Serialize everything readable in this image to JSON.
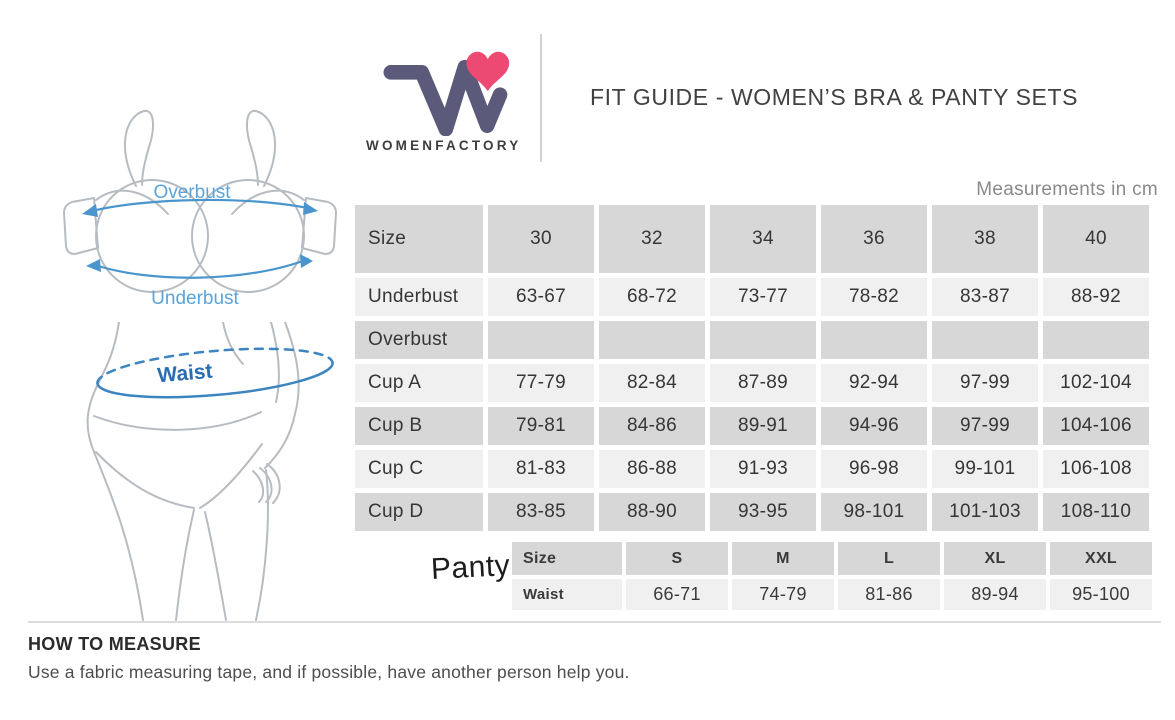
{
  "brand": {
    "wordmark": "WOMENFACTORY",
    "logo_color": "#5b5a7b",
    "heart_color": "#ec4a72"
  },
  "header": {
    "title": "FIT GUIDE - WOMEN’S BRA & PANTY SETS",
    "units_note": "Measurements in cm"
  },
  "diagram_labels": {
    "overbust": "Overbust",
    "underbust": "Underbust",
    "waist": "Waist"
  },
  "bra_table": {
    "columns": [
      "Size",
      "30",
      "32",
      "34",
      "36",
      "38",
      "40"
    ],
    "rows": [
      {
        "label": "Underbust",
        "values": [
          "63-67",
          "68-72",
          "73-77",
          "78-82",
          "83-87",
          "88-92"
        ]
      },
      {
        "label": "Overbust",
        "values": [
          "",
          "",
          "",
          "",
          "",
          ""
        ]
      },
      {
        "label": "Cup A",
        "values": [
          "77-79",
          "82-84",
          "87-89",
          "92-94",
          "97-99",
          "102-104"
        ]
      },
      {
        "label": "Cup B",
        "values": [
          "79-81",
          "84-86",
          "89-91",
          "94-96",
          "97-99",
          "104-106"
        ]
      },
      {
        "label": "Cup C",
        "values": [
          "81-83",
          "86-88",
          "91-93",
          "96-98",
          "99-101",
          "106-108"
        ]
      },
      {
        "label": "Cup D",
        "values": [
          "83-85",
          "88-90",
          "93-95",
          "98-101",
          "101-103",
          "108-110"
        ]
      }
    ]
  },
  "panty": {
    "group_label": "Panty",
    "columns": [
      "Size",
      "S",
      "M",
      "L",
      "XL",
      "XXL"
    ],
    "rows": [
      {
        "label": "Waist",
        "values": [
          "66-71",
          "74-79",
          "81-86",
          "89-94",
          "95-100"
        ]
      }
    ]
  },
  "how_to_measure": {
    "heading": "HOW TO MEASURE",
    "body": "Use a fabric measuring tape, and if possible, have another person help you."
  },
  "colors": {
    "table_header_bg": "#d7d7d7",
    "table_row_light": "#f0f0f0",
    "table_row_dark": "#d7d7d7",
    "diagram_label_blue": "#5ba3d9",
    "waist_label_blue": "#2a6db3",
    "note_gray": "#8a8a8a"
  }
}
